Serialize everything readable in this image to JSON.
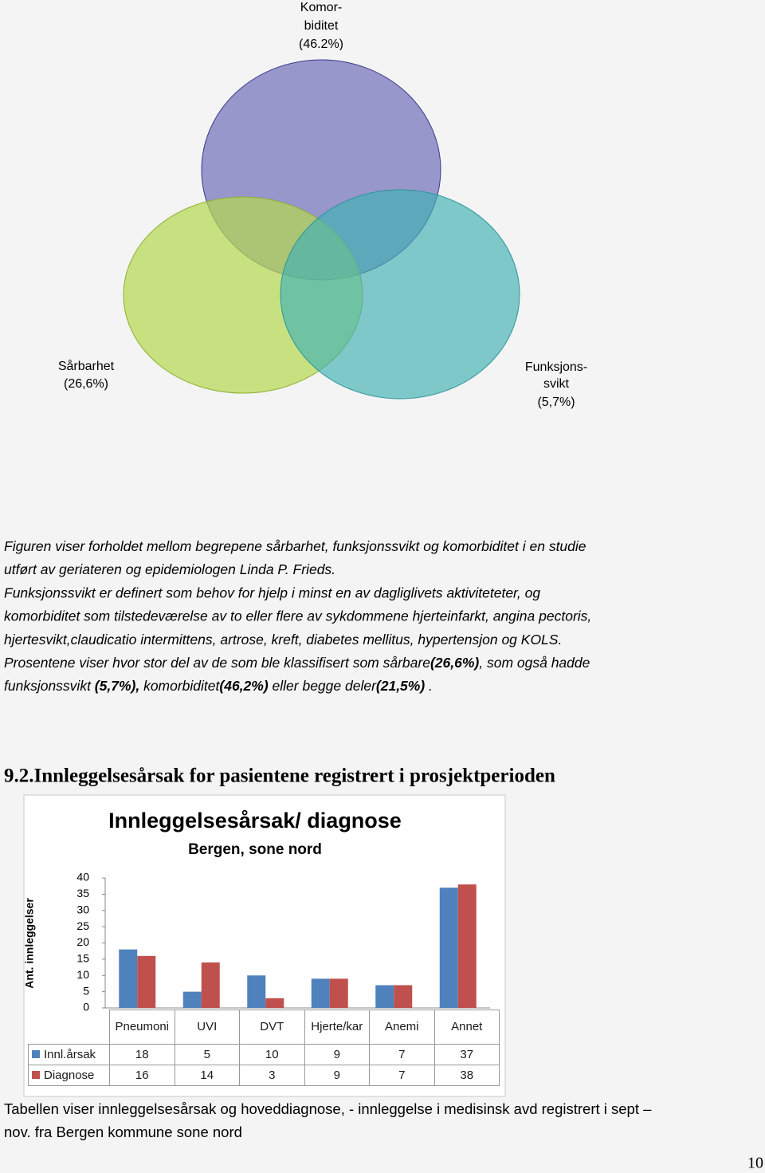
{
  "venn": {
    "circles": [
      {
        "label": [
          "Komor-",
          "biditet",
          "(46.2%)"
        ]
      },
      {
        "label": [
          "Sårbarhet",
          "(26,6%)"
        ]
      },
      {
        "label": [
          "Funksjons-",
          "svikt",
          "(5,7%)"
        ]
      }
    ]
  },
  "caption": {
    "lines": [
      [
        {
          "text": "Figuren viser forholdet mellom begrepene sårbarhet, funksjonssvikt og komorbiditet i en studie",
          "bold": false
        }
      ],
      [
        {
          "text": "utført av geriateren og epidemiologen Linda P. Frieds.",
          "bold": false
        }
      ],
      [
        {
          "text": "Funksjonssvikt er definert som behov for hjelp i minst en av dagliglivets aktiviteteter, og",
          "bold": false
        }
      ],
      [
        {
          "text": "komorbiditet som tilstedeværelse av to eller flere av sykdommene hjerteinfarkt, angina pectoris,",
          "bold": false
        }
      ],
      [
        {
          "text": "hjertesvikt,claudicatio intermittens, artrose, kreft, diabetes mellitus, hypertensjon og KOLS.",
          "bold": false
        }
      ],
      [
        {
          "text": "Prosentene viser hvor stor del av de som ble klassifisert som sårbare",
          "bold": false
        },
        {
          "text": "(26,6%)",
          "bold": true
        },
        {
          "text": ", som også hadde",
          "bold": false
        }
      ],
      [
        {
          "text": "funksjonssvikt ",
          "bold": false
        },
        {
          "text": "(5,7%),",
          "bold": true
        },
        {
          "text": " komorbiditet",
          "bold": false
        },
        {
          "text": "(46,2%)",
          "bold": true
        },
        {
          "text": " eller begge deler",
          "bold": false
        },
        {
          "text": "(21,5%)",
          "bold": true
        },
        {
          "text": " .",
          "bold": false
        }
      ]
    ]
  },
  "heading": "9.2.Innleggelsesårsak for pasientene registrert i prosjektperioden",
  "chart_data": {
    "type": "bar",
    "title": "Innleggelsesårsak/ diagnose",
    "subtitle": "Bergen, sone nord",
    "y_label": "Ant. innleggelser",
    "categories": [
      "Pneumoni",
      "UVI",
      "DVT",
      "Hjerte/kar",
      "Anemi",
      "Annet"
    ],
    "series": [
      {
        "name": "Innl.årsak",
        "color": "#4f81bd",
        "values": [
          18,
          5,
          10,
          9,
          7,
          37
        ]
      },
      {
        "name": "Diagnose",
        "color": "#c0504d",
        "values": [
          16,
          14,
          3,
          9,
          7,
          38
        ]
      }
    ],
    "ylim": [
      0,
      40
    ],
    "yticks": [
      0,
      5,
      10,
      15,
      20,
      25,
      30,
      35,
      40
    ],
    "grid": false,
    "data_table": true
  },
  "footer": {
    "lines": [
      "Tabellen viser innleggelsesårsak og hoveddiagnose, - innleggelse i medisinsk avd registrert i sept –",
      "nov. fra Bergen kommune sone nord"
    ]
  },
  "page_number": "10"
}
